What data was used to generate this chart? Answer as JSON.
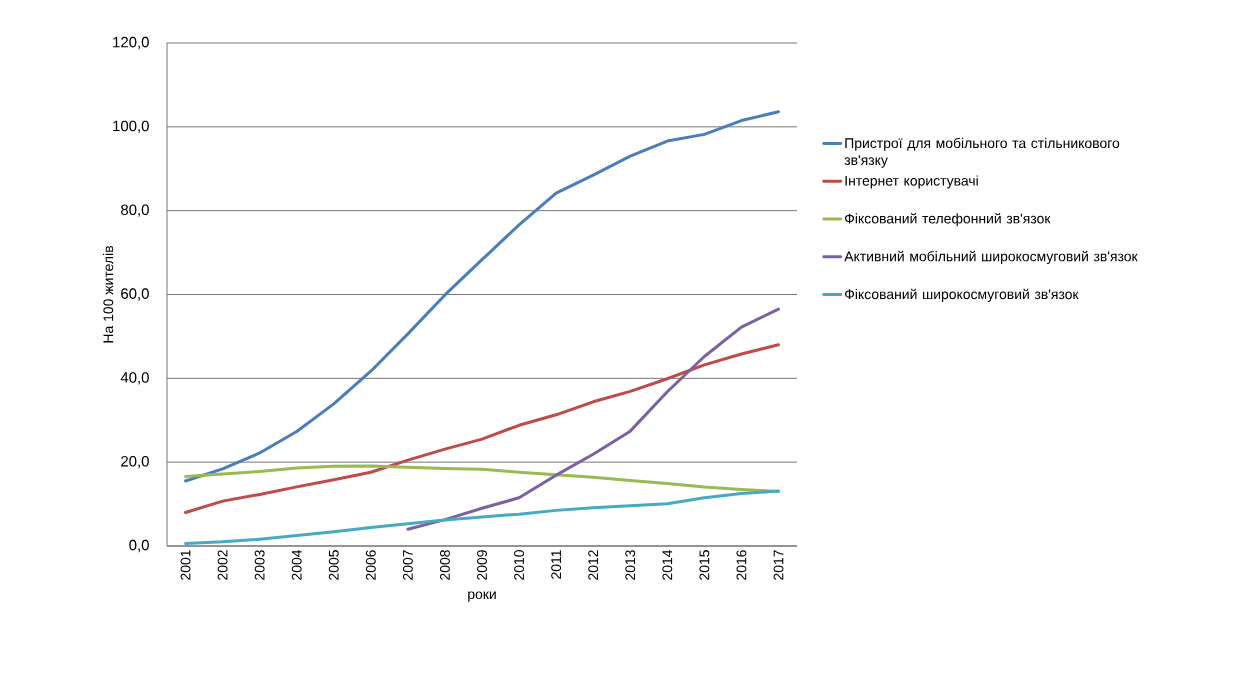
{
  "chart_data": {
    "type": "line",
    "xlabel": "роки",
    "ylabel": "На 100 жителів",
    "categories": [
      "2001",
      "2002",
      "2003",
      "2004",
      "2005",
      "2006",
      "2007",
      "2008",
      "2009",
      "2010",
      "2011",
      "2012",
      "2013",
      "2014",
      "2015",
      "2016",
      "2017"
    ],
    "ylim": [
      0,
      120
    ],
    "yticks": [
      {
        "value": 0,
        "label": "0,0"
      },
      {
        "value": 20,
        "label": "20,0"
      },
      {
        "value": 40,
        "label": "40,0"
      },
      {
        "value": 60,
        "label": "60,0"
      },
      {
        "value": 80,
        "label": "80,0"
      },
      {
        "value": 100,
        "label": "100,0"
      },
      {
        "value": 120,
        "label": "120,0"
      }
    ],
    "grid": "y",
    "legend": "right",
    "marker": "none",
    "line_style": "solid",
    "series": [
      {
        "name": "Пристрої для мобільного та стільникового зв'язку",
        "color": "#4a7ebb",
        "values": [
          15.5,
          18.4,
          22.2,
          27.3,
          33.9,
          41.7,
          50.6,
          59.9,
          68.3,
          76.6,
          84.2,
          88.5,
          93.0,
          96.6,
          98.2,
          101.5,
          103.6
        ]
      },
      {
        "name": "Інтернет користувачі",
        "color": "#be4b48",
        "values": [
          8.0,
          10.7,
          12.3,
          14.1,
          15.8,
          17.6,
          20.5,
          23.1,
          25.5,
          28.8,
          31.3,
          34.4,
          36.9,
          39.9,
          43.2,
          45.8,
          48.0
        ]
      },
      {
        "name": "Фіксований телефонний зв'язок",
        "color": "#98b954",
        "values": [
          16.6,
          17.2,
          17.8,
          18.6,
          19.0,
          19.1,
          18.8,
          18.5,
          18.3,
          17.6,
          17.0,
          16.4,
          15.6,
          14.9,
          14.1,
          13.5,
          13.0
        ]
      },
      {
        "name": "Активний мобільний широкосмуговий зв'язок",
        "color": "#7d60a0",
        "values": [
          null,
          null,
          null,
          null,
          null,
          null,
          4.0,
          6.3,
          9.0,
          11.5,
          16.9,
          21.9,
          27.4,
          36.8,
          45.2,
          52.2,
          56.5
        ]
      },
      {
        "name": "Фіксований широкосмуговий зв'язок",
        "color": "#46aac5",
        "values": [
          0.6,
          1.0,
          1.6,
          2.5,
          3.4,
          4.4,
          5.3,
          6.2,
          6.9,
          7.6,
          8.5,
          9.1,
          9.6,
          10.1,
          11.5,
          12.5,
          13.1
        ]
      }
    ]
  }
}
